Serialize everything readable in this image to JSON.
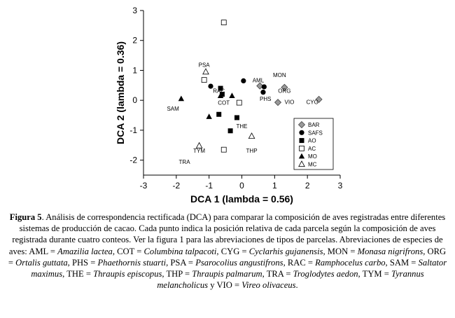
{
  "chart_data": {
    "type": "scatter",
    "xlabel": "DCA 1 (lambda = 0.56)",
    "ylabel": "DCA 2 (lambda = 0.36)",
    "xlim": [
      -3,
      3
    ],
    "ylim": [
      -2.5,
      3
    ],
    "x_ticks": [
      "-3",
      "-2",
      "-1",
      "0",
      "1",
      "2",
      "3"
    ],
    "y_ticks": [
      "-2",
      "-1",
      "0",
      "1",
      "2",
      "3"
    ],
    "grid": false,
    "legend_position": "bottom-right",
    "series": [
      {
        "name": "BAR",
        "marker": "diamond-filled",
        "points": [
          [
            0.55,
            0.48
          ],
          [
            1.3,
            0.43
          ],
          [
            1.1,
            -0.07
          ],
          [
            2.35,
            0.03
          ]
        ]
      },
      {
        "name": "SAFS",
        "marker": "circle-filled",
        "points": [
          [
            -0.95,
            0.47
          ],
          [
            0.05,
            0.65
          ],
          [
            0.68,
            0.45
          ],
          [
            0.65,
            0.27
          ]
        ]
      },
      {
        "name": "AO",
        "marker": "square-filled",
        "points": [
          [
            -0.65,
            0.4
          ],
          [
            -0.6,
            0.2
          ],
          [
            -0.7,
            -0.47
          ],
          [
            -0.15,
            -0.58
          ],
          [
            -0.35,
            -1.02
          ]
        ]
      },
      {
        "name": "AC",
        "marker": "square-open",
        "points": [
          [
            -0.55,
            2.6
          ],
          [
            -1.15,
            0.68
          ],
          [
            -0.08,
            -0.08
          ],
          [
            -0.55,
            -1.65
          ]
        ]
      },
      {
        "name": "MO",
        "marker": "triangle-filled",
        "points": [
          [
            -1.85,
            0.05
          ],
          [
            -0.65,
            0.15
          ],
          [
            -0.3,
            0.15
          ],
          [
            -1.0,
            -0.55
          ]
        ]
      },
      {
        "name": "MC",
        "marker": "triangle-open",
        "points": [
          [
            -1.1,
            0.95
          ],
          [
            0.3,
            -1.2
          ],
          [
            -1.3,
            -1.52
          ]
        ]
      }
    ],
    "annotations": [
      {
        "text": "PSA",
        "x": -1.15,
        "y": 1.12
      },
      {
        "text": "MON",
        "x": 1.15,
        "y": 0.78
      },
      {
        "text": "AML",
        "x": 0.5,
        "y": 0.6
      },
      {
        "text": "RAC",
        "x": -0.7,
        "y": 0.25
      },
      {
        "text": "ORG",
        "x": 1.3,
        "y": 0.25
      },
      {
        "text": "PHS",
        "x": 0.72,
        "y": -0.02
      },
      {
        "text": "VIO",
        "x": 1.45,
        "y": -0.12
      },
      {
        "text": "CYG",
        "x": 2.15,
        "y": -0.12
      },
      {
        "text": "COT",
        "x": -0.55,
        "y": -0.15
      },
      {
        "text": "SAM",
        "x": -2.1,
        "y": -0.35
      },
      {
        "text": "THE",
        "x": 0.0,
        "y": -0.93
      },
      {
        "text": "TYM",
        "x": -1.3,
        "y": -1.75
      },
      {
        "text": "THP",
        "x": 0.3,
        "y": -1.75
      },
      {
        "text": "TRA",
        "x": -1.75,
        "y": -2.12
      }
    ]
  },
  "caption": {
    "figure_label": "Figura 5",
    "main_text": ". Análisis de correspondencia rectificada (DCA) para comparar la composición de aves registradas entre diferentes sistemas de producción de cacao. Cada punto indica la posición relativa de cada parcela según la composición de aves registrada durante cuatro conteos. Ver la figura 1 para las abreviaciones de tipos de parcelas. Abreviaciones de especies de aves: ",
    "species": [
      {
        "code": "AML",
        "name": "Amazilia lactea"
      },
      {
        "code": "COT",
        "name": "Columbina talpacoti"
      },
      {
        "code": "CYG",
        "name": "Cyclarhis gujanensis"
      },
      {
        "code": "MON",
        "name": "Monasa nigrifrons"
      },
      {
        "code": "ORG",
        "name": "Ortalis guttata"
      },
      {
        "code": "PHS",
        "name": "Phaethornis stuarti"
      },
      {
        "code": "PSA",
        "name": "Psarocolius angustifrons"
      },
      {
        "code": "RAC",
        "name": "Ramphocelus carbo"
      },
      {
        "code": "SAM",
        "name": "Saltator maximus"
      },
      {
        "code": "THE",
        "name": "Thraupis episcopus"
      },
      {
        "code": "THP",
        "name": "Thraupis palmarum"
      },
      {
        "code": "TRA",
        "name": "Troglodytes aedon"
      },
      {
        "code": "TYM",
        "name": "Tyrannus melancholicus"
      },
      {
        "code": "VIO",
        "name": "Vireo olivaceus"
      }
    ],
    "separator": ", ",
    "last_separator": " y ",
    "equals": " = ",
    "ending": "."
  }
}
